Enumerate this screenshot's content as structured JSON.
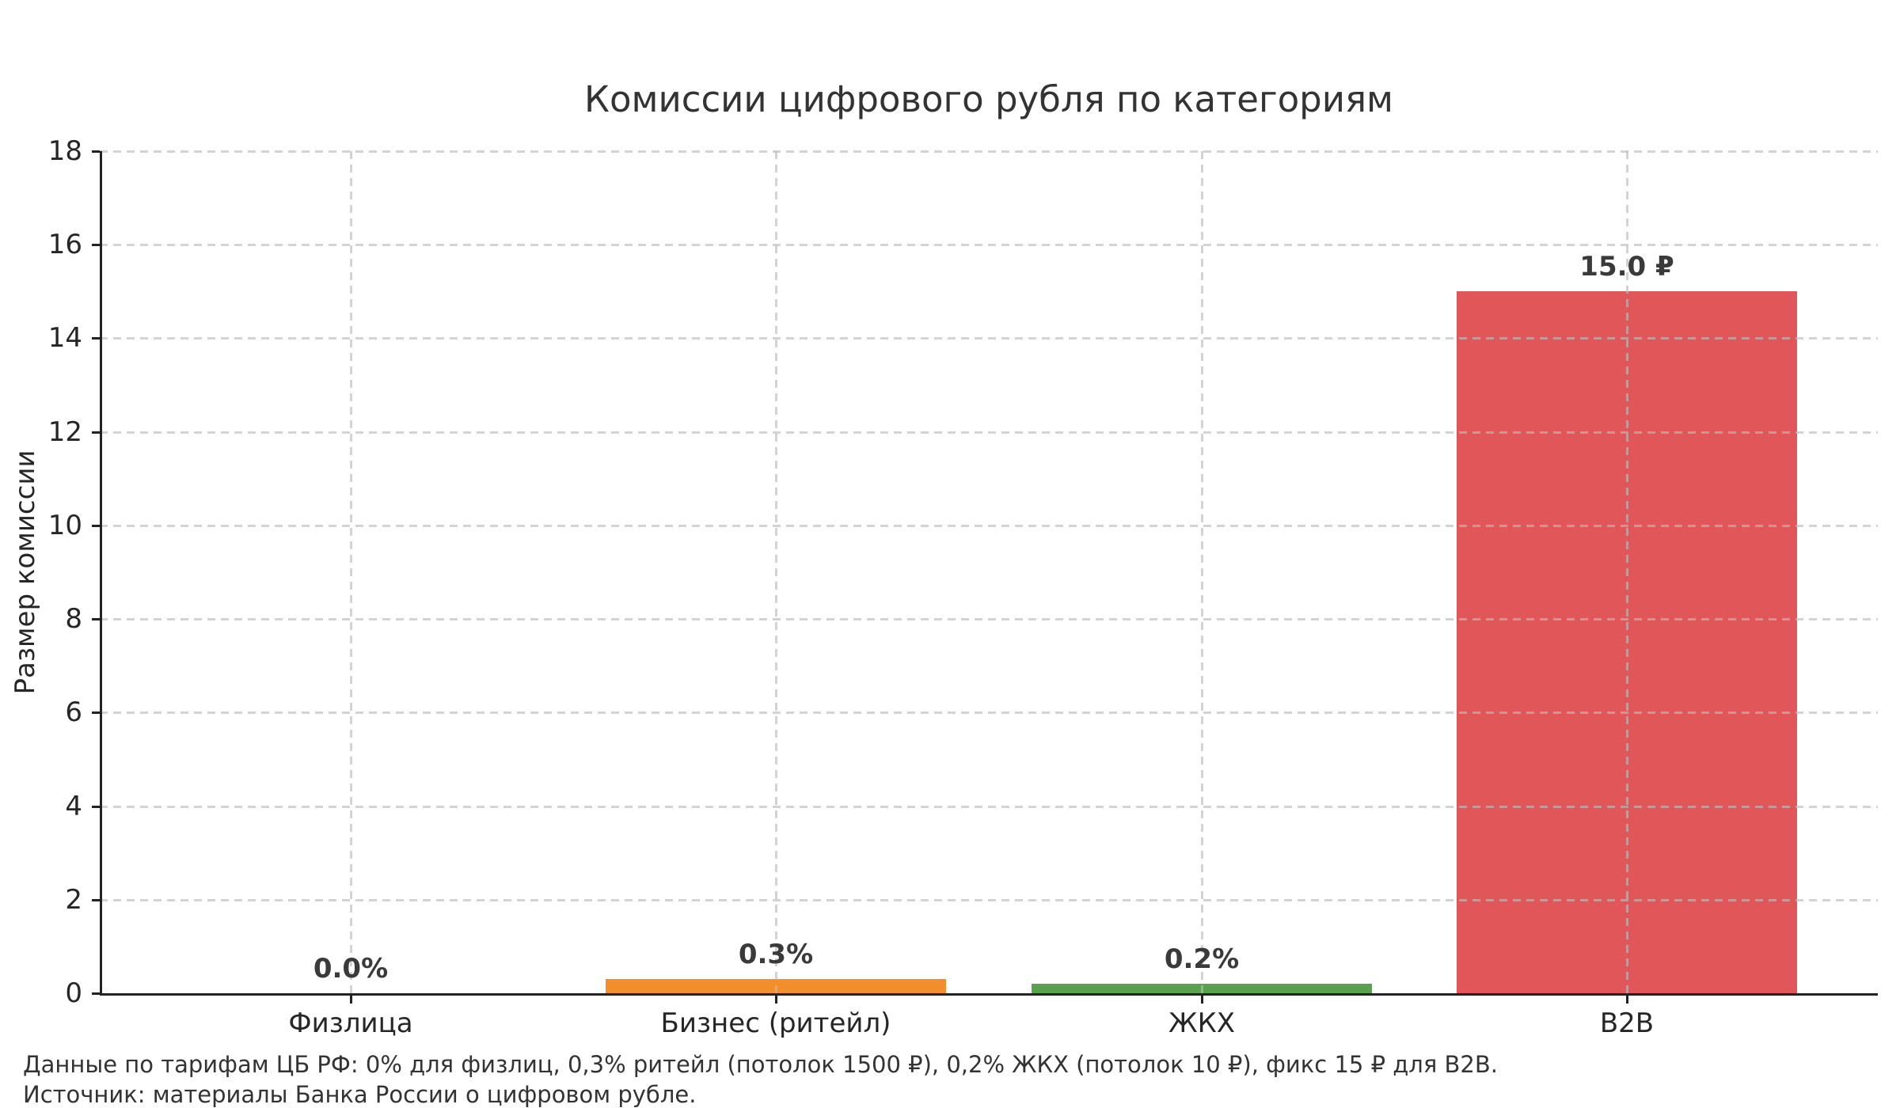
{
  "chart_data": {
    "type": "bar",
    "title": "Комиссии цифрового рубля по категориям",
    "categories": [
      "Физлица",
      "Бизнес (ритейл)",
      "ЖКХ",
      "B2B"
    ],
    "values": [
      0.0,
      0.3,
      0.2,
      15.0
    ],
    "bar_labels": [
      "0.0%",
      "0.3%",
      "0.2%",
      "15.0 ₽"
    ],
    "bar_colors": [
      null,
      "#f28e2b",
      "#59a14f",
      "#e15759"
    ],
    "xlabel": "",
    "ylabel": "Размер комиссии",
    "ylim": [
      0,
      18
    ],
    "yticks": [
      0,
      2,
      4,
      6,
      8,
      10,
      12,
      14,
      16,
      18
    ],
    "grid": true,
    "grid_style": "dashed",
    "grid_above_bars": true,
    "legend": false
  },
  "footnote": {
    "line1": "Данные по тарифам ЦБ РФ: 0% для физлиц, 0,3% ритейл (потолок 1500 ₽), 0,2% ЖКХ (потолок 10 ₽), фикс 15 ₽ для B2B.",
    "line2": "Источник: материалы Банка России о цифровом рубле."
  }
}
